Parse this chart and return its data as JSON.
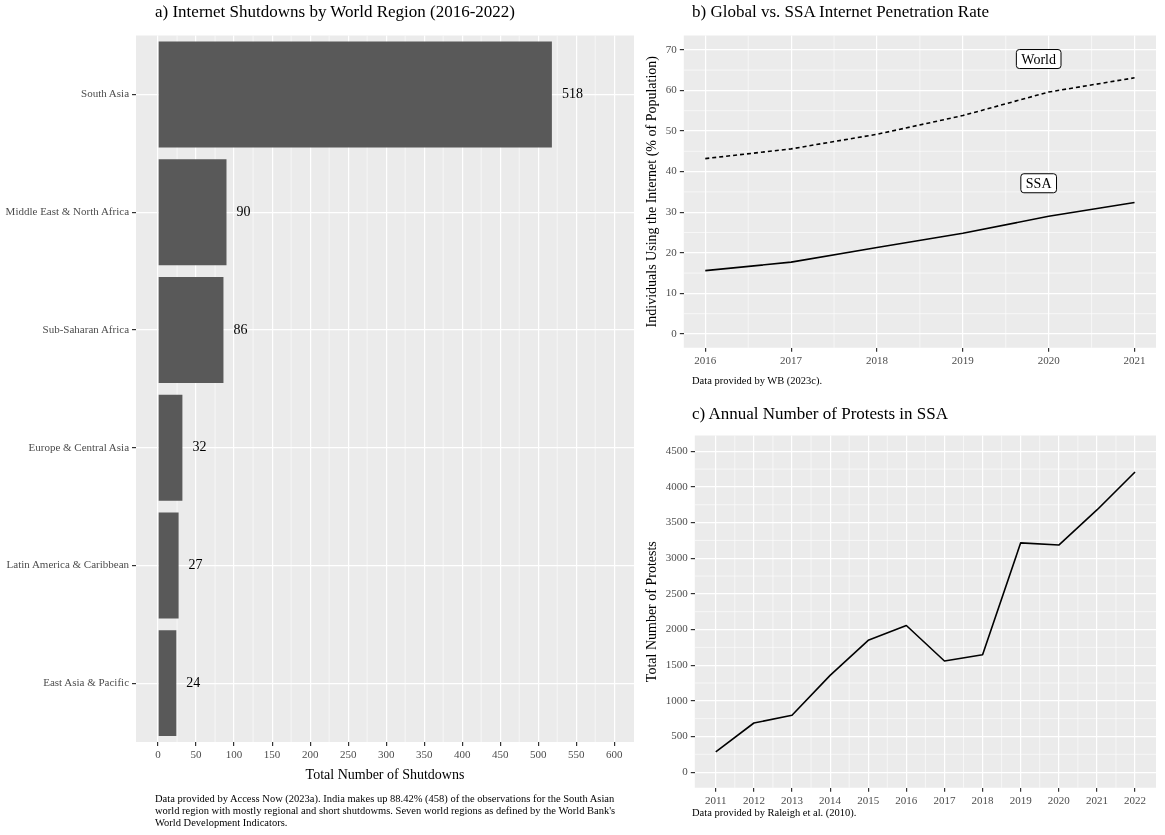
{
  "chart_data": [
    {
      "type": "bar",
      "orientation": "horizontal",
      "title": "a) Internet Shutdowns by World Region (2016-2022)",
      "xlabel": "Total Number of Shutdowns",
      "categories": [
        "South Asia",
        "Middle East & North Africa",
        "Sub-Saharan Africa",
        "Europe & Central Asia",
        "Latin America & Caribbean",
        "East Asia & Pacific"
      ],
      "values": [
        518,
        90,
        86,
        32,
        27,
        24
      ],
      "color": "#595959",
      "data_labels": true,
      "xlim": [
        -29,
        626
      ],
      "xticks": [
        0,
        50,
        100,
        150,
        200,
        250,
        300,
        350,
        400,
        450,
        500,
        550,
        600
      ],
      "grid": true,
      "annotations": [
        "Data provided by Access Now (2023a). India makes up 88.42% (458) of the observations for the South Asian world region with mostly regional and short shutdowms. Seven world regions as defined by the World Bank's World Development Indicators."
      ]
    },
    {
      "type": "line",
      "title": "b) Global vs. SSA Internet Penetration Rate",
      "ylabel": "Individuals Using the Internet (% of Population)",
      "x": [
        2016,
        2017,
        2018,
        2019,
        2020,
        2021
      ],
      "series": [
        {
          "name": "World",
          "color": "#000000",
          "line_style": "dashed",
          "values": [
            43.2,
            45.6,
            49.2,
            53.8,
            59.6,
            63.1
          ]
        },
        {
          "name": "SSA",
          "color": "#000000",
          "line_style": "solid",
          "values": [
            15.6,
            17.7,
            21.3,
            24.8,
            29.0,
            32.4
          ]
        }
      ],
      "xlim": [
        2015.75,
        2021.25
      ],
      "xticks": [
        2016,
        2017,
        2018,
        2019,
        2020,
        2021
      ],
      "ylim": [
        -3.4,
        73.5
      ],
      "yticks": [
        0,
        10,
        20,
        30,
        40,
        50,
        60,
        70
      ],
      "grid": true,
      "annotations": [
        "Data provided by WB (2023c)."
      ]
    },
    {
      "type": "line",
      "title": "c) Annual Number of Protests in SSA",
      "ylabel": "Total Number of Protests",
      "x": [
        2011,
        2012,
        2013,
        2014,
        2015,
        2016,
        2017,
        2018,
        2019,
        2020,
        2021,
        2022
      ],
      "series": [
        {
          "color": "#000000",
          "values": [
            285,
            689,
            797,
            1357,
            1849,
            2056,
            1559,
            1647,
            3216,
            3185,
            3677,
            4210
          ]
        }
      ],
      "xlim": [
        2010.45,
        2022.55
      ],
      "xticks": [
        2011,
        2012,
        2013,
        2014,
        2015,
        2016,
        2017,
        2018,
        2019,
        2020,
        2021,
        2022
      ],
      "ylim": [
        -220,
        4720
      ],
      "yticks": [
        0,
        500,
        1000,
        1500,
        2000,
        2500,
        3000,
        3500,
        4000,
        4500
      ],
      "grid": true,
      "annotations": [
        "Data provided by Raleigh et al. (2010)."
      ]
    }
  ]
}
